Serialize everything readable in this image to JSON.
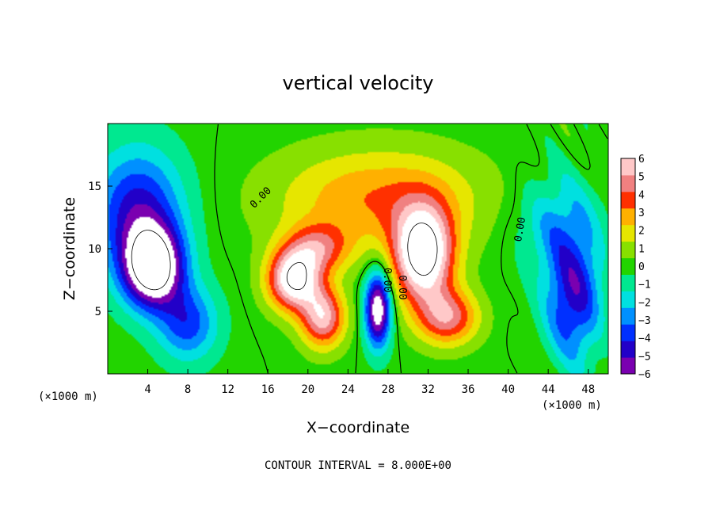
{
  "chart_data": {
    "type": "heatmap",
    "title": "vertical velocity",
    "xlabel": "X−coordinate",
    "ylabel": "Z−coordinate",
    "x_unit_left": "(×1000 m)",
    "x_unit_right": "(×1000 m)",
    "xlim": [
      0,
      50
    ],
    "ylim": [
      0,
      20
    ],
    "xticks": [
      4,
      8,
      12,
      16,
      20,
      24,
      28,
      32,
      36,
      40,
      44,
      48
    ],
    "yticks": [
      5,
      10,
      15
    ],
    "colorbar": {
      "range": [
        -6,
        6
      ],
      "ticks": [
        6,
        5,
        4,
        3,
        2,
        1,
        0,
        -1,
        -2,
        -3,
        -4,
        -5,
        -6
      ],
      "tick_labels": [
        "6",
        "5",
        "4",
        "3",
        "2",
        "1",
        "0",
        "−1",
        "−2",
        "−3",
        "−4",
        "−5",
        "−6"
      ],
      "colors": [
        "#7a00b0",
        "#2200c8",
        "#0030ff",
        "#0090ff",
        "#00e0e0",
        "#00e890",
        "#22d400",
        "#88e000",
        "#e6e600",
        "#ffb000",
        "#ff3000",
        "#f08080",
        "#ffc8c8"
      ]
    },
    "contour_interval_text": "CONTOUR INTERVAL = 8.000E+00",
    "contour_labels": [
      "0.00",
      "0.00",
      "0.00",
      "0.00"
    ],
    "features": [
      {
        "kind": "updraft",
        "x": 19,
        "z": 6.5,
        "amplitude": 8
      },
      {
        "kind": "updraft",
        "x": 31.5,
        "z": 8.5,
        "amplitude": 9
      },
      {
        "kind": "downdraft",
        "x": 27,
        "z": 5,
        "amplitude": -8
      },
      {
        "kind": "downdraft",
        "x": 5,
        "z": 8.5,
        "amplitude": -9
      },
      {
        "kind": "downdraft",
        "x": 47,
        "z": 6,
        "amplitude": -5
      }
    ]
  }
}
